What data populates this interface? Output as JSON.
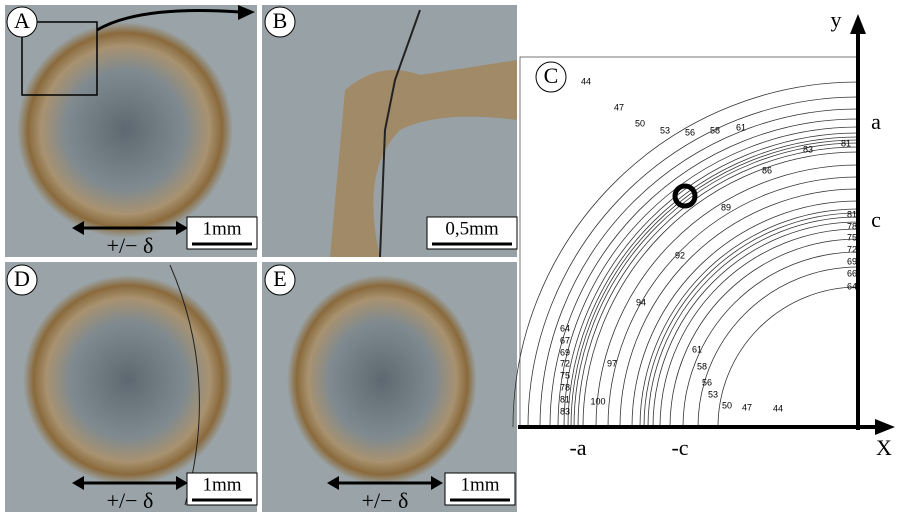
{
  "panels": [
    {
      "label": "A",
      "annotation": "+/− δ",
      "scale": "1mm"
    },
    {
      "label": "B",
      "scale": "0,5mm"
    },
    {
      "label": "D",
      "annotation": "+/− δ",
      "scale": "1mm"
    },
    {
      "label": "E",
      "annotation": "+/− δ",
      "scale": "1mm"
    }
  ],
  "plot": {
    "label": "C",
    "x_axis": "X",
    "y_axis": "y",
    "x_ticks": [
      "-a",
      "-c"
    ],
    "y_ticks": [
      "a",
      "c"
    ],
    "contour_labels": [
      44,
      47,
      50,
      53,
      56,
      58,
      61,
      83,
      81,
      86,
      89,
      92,
      94,
      97,
      100,
      64,
      67,
      69,
      72,
      75,
      78,
      81,
      83,
      81,
      78,
      75,
      72,
      69,
      66,
      64,
      61,
      58,
      56,
      53,
      50,
      47,
      44
    ]
  }
}
